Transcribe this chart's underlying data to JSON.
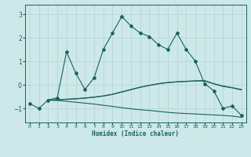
{
  "title": "",
  "xlabel": "Humidex (Indice chaleur)",
  "ylabel": "",
  "bg_color": "#cde8e8",
  "line_color": "#1a6060",
  "grid_color": "#b8d4d4",
  "xlim": [
    -0.5,
    23.5
  ],
  "ylim": [
    -1.6,
    3.4
  ],
  "yticks": [
    -1,
    0,
    1,
    2,
    3
  ],
  "xticks": [
    0,
    1,
    2,
    3,
    4,
    5,
    6,
    7,
    8,
    9,
    10,
    11,
    12,
    13,
    14,
    15,
    16,
    17,
    18,
    19,
    20,
    21,
    22,
    23
  ],
  "series1_x": [
    0,
    1,
    2,
    3,
    4,
    5,
    6,
    7,
    8,
    9,
    10,
    11,
    12,
    13,
    14,
    15,
    16,
    17,
    18,
    19,
    20,
    21,
    22,
    23
  ],
  "series1_y": [
    -0.8,
    -1.0,
    -0.65,
    -0.55,
    1.4,
    0.5,
    -0.2,
    0.3,
    1.5,
    2.2,
    2.9,
    2.5,
    2.2,
    2.05,
    1.7,
    1.5,
    2.2,
    1.5,
    1.0,
    0.05,
    -0.25,
    -1.0,
    -0.9,
    -1.3
  ],
  "series2_x": [
    2,
    3,
    4,
    5,
    6,
    7,
    8,
    9,
    10,
    11,
    12,
    13,
    14,
    15,
    16,
    17,
    18,
    19,
    20,
    21,
    22,
    23
  ],
  "series2_y": [
    -0.65,
    -0.63,
    -0.61,
    -0.59,
    -0.56,
    -0.52,
    -0.47,
    -0.4,
    -0.3,
    -0.2,
    -0.1,
    -0.02,
    0.05,
    0.1,
    0.13,
    0.15,
    0.17,
    0.18,
    0.05,
    -0.05,
    -0.12,
    -0.2
  ],
  "series3_x": [
    2,
    3,
    4,
    5,
    6,
    7,
    8,
    9,
    10,
    11,
    12,
    13,
    14,
    15,
    16,
    17,
    18,
    19,
    20,
    21,
    22,
    23
  ],
  "series3_y": [
    -0.65,
    -0.67,
    -0.7,
    -0.74,
    -0.78,
    -0.82,
    -0.87,
    -0.92,
    -0.97,
    -1.02,
    -1.06,
    -1.09,
    -1.13,
    -1.17,
    -1.2,
    -1.22,
    -1.24,
    -1.26,
    -1.28,
    -1.3,
    -1.33,
    -1.38
  ],
  "series4_x": [
    2,
    3,
    4,
    5,
    6,
    7,
    8,
    9,
    10,
    11,
    12,
    13,
    14,
    15,
    16,
    17,
    18,
    19,
    20,
    21,
    22,
    23
  ],
  "series4_y": [
    -0.65,
    -0.64,
    -0.62,
    -0.6,
    -0.57,
    -0.53,
    -0.48,
    -0.41,
    -0.31,
    -0.21,
    -0.11,
    -0.03,
    0.04,
    0.09,
    0.12,
    0.14,
    0.16,
    0.16,
    0.04,
    -0.07,
    -0.13,
    -0.22
  ]
}
